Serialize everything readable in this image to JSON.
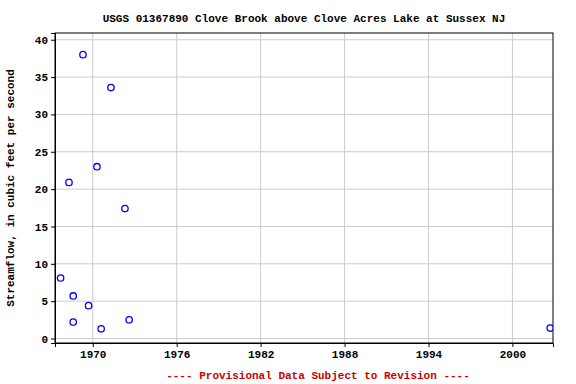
{
  "chart_data": {
    "type": "scatter",
    "title": "USGS 01367890 Clove Brook above Clove Acres Lake at Sussex NJ",
    "y_label": "Streamflow, in cubic feet per second",
    "annotations": [
      "---- Provisional Data Subject to Revision ----"
    ],
    "x": [
      1967.7,
      1968.3,
      1968.6,
      1968.6,
      1969.3,
      1969.7,
      1970.3,
      1970.6,
      1971.3,
      1972.3,
      1972.6,
      2002.7
    ],
    "values": [
      8.1,
      20.9,
      5.7,
      2.2,
      38.0,
      4.4,
      23.0,
      1.3,
      33.6,
      17.4,
      2.5,
      1.4
    ],
    "color": "#0000ff",
    "marker": "circle",
    "xlim": [
      1967.3,
      2002.9
    ],
    "xticks": [
      1970,
      1976,
      1982,
      1988,
      1994,
      2000
    ],
    "ylim": [
      -0.6,
      40.9
    ],
    "yticks": [
      0,
      5,
      10,
      15,
      20,
      25,
      30,
      35,
      40
    ],
    "grid": true
  }
}
